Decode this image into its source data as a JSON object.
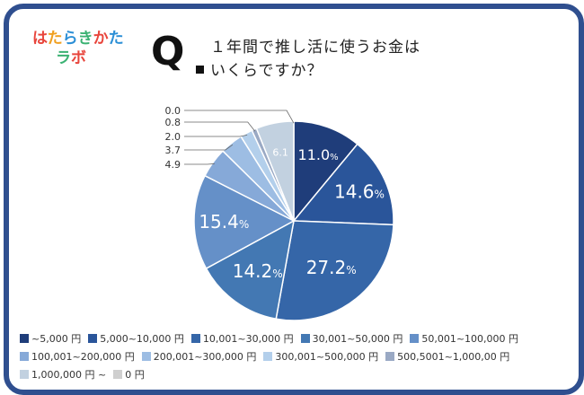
{
  "logo": {
    "line1": "はたらきかた",
    "line2": "ラボ"
  },
  "question": {
    "mark": "Q",
    "line1": "１年間で推し活に使うお金は",
    "line2": "いくらですか？"
  },
  "chart_data": {
    "type": "pie",
    "categories": [
      "~5,000 円",
      "5,000~10,000 円",
      "10,001~30,000 円",
      "30,001~50,000 円",
      "50,001~100,000 円",
      "100,001~200,000 円",
      "200,001~300,000 円",
      "300,001~500,000 円",
      "500,5001~1,000,00 円",
      "1,000,000 円 ~",
      "0 円"
    ],
    "values": [
      11.0,
      14.6,
      27.2,
      14.2,
      15.4,
      4.9,
      3.7,
      2.0,
      0.8,
      6.1,
      0.0
    ],
    "labels": [
      "11.0%",
      "14.6%",
      "27.2%",
      "14.2%",
      "15.4%",
      "4.9",
      "3.7",
      "2.0",
      "0.8",
      "6.1",
      "0.0"
    ],
    "colors": [
      "#1f3d7a",
      "#2a559a",
      "#3566a8",
      "#4378b3",
      "#6590c8",
      "#86a9d8",
      "#9dbde3",
      "#b3cfeb",
      "#9aa9c4",
      "#c2d1e0",
      "#cfcfcf"
    ],
    "legend_position": "bottom"
  }
}
